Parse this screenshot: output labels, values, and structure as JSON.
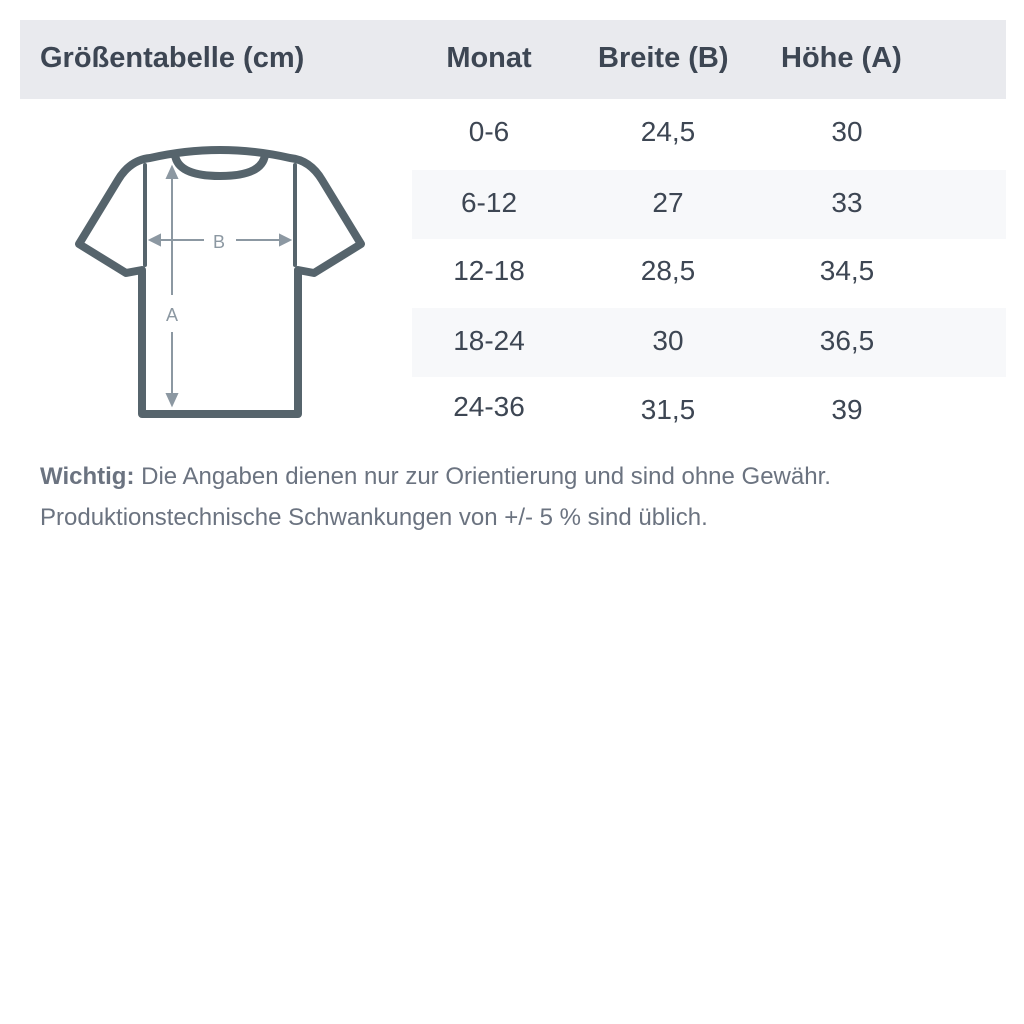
{
  "header": {
    "title": "Größentabelle (cm)",
    "columns": [
      "Monat",
      "Breite (B)",
      "Höhe (A)"
    ]
  },
  "rows": [
    {
      "monat": "0-6",
      "breite": "24,5",
      "hoehe": "30"
    },
    {
      "monat": "6-12",
      "breite": "27",
      "hoehe": "33"
    },
    {
      "monat": "12-18",
      "breite": "28,5",
      "hoehe": "34,5"
    },
    {
      "monat": "18-24",
      "breite": "30",
      "hoehe": "36,5"
    },
    {
      "monat": "24-36",
      "breite": "31,5",
      "hoehe": "39"
    }
  ],
  "diagram": {
    "label_b": "B",
    "label_a": "A"
  },
  "note": {
    "bold": "Wichtig:",
    "line1": " Die Angaben dienen nur zur Orientierung und sind ohne Gewähr.",
    "line2": "Produktionstechnische Schwankungen von +/- 5 % sind üblich."
  },
  "colors": {
    "header_bg": "#e9eaee",
    "stripe": "#f7f8fa",
    "text": "#3d4653",
    "shirt": "#56646c",
    "arrows": "#8c98a2"
  }
}
